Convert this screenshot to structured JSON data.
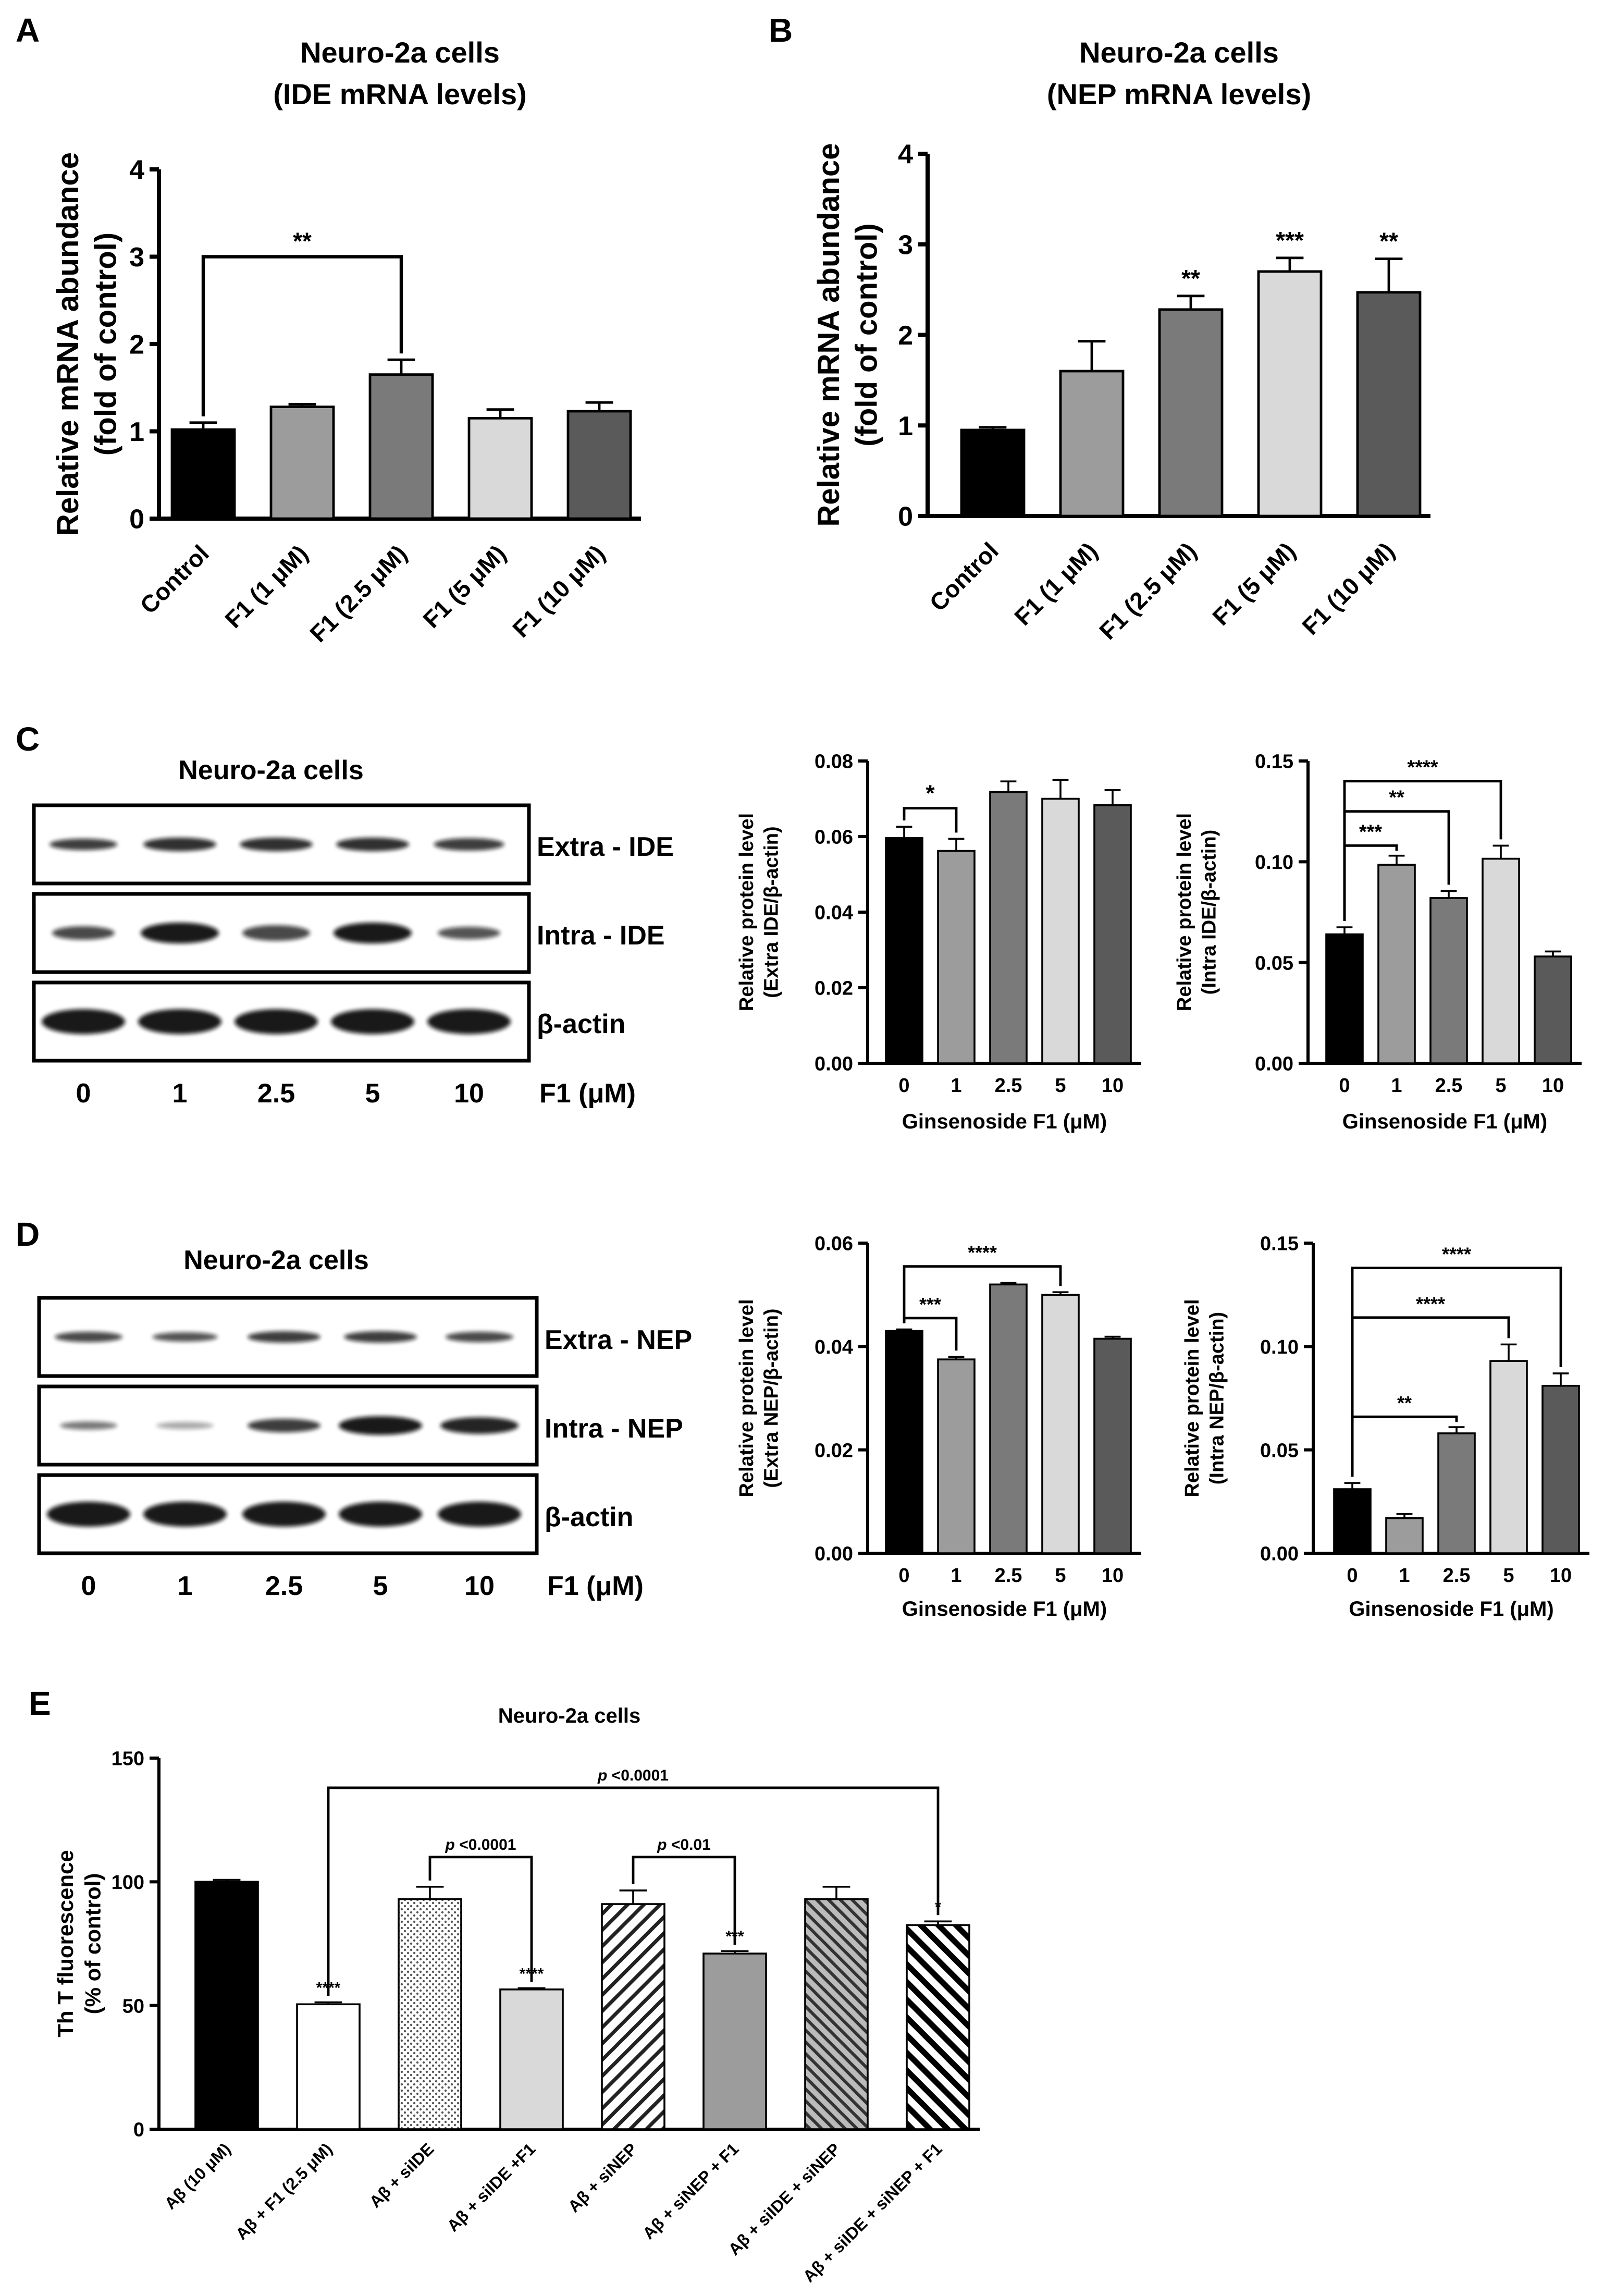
{
  "panels": {
    "A": {
      "letter": "A"
    },
    "B": {
      "letter": "B"
    },
    "C": {
      "letter": "C",
      "blot_title": "Neuro-2a cells",
      "lanes": [
        "0",
        "1",
        "2.5",
        "5",
        "10"
      ],
      "lane_unit": "F1 (μM)",
      "rows": [
        "Extra - IDE",
        "Intra - IDE",
        "β-actin"
      ]
    },
    "D": {
      "letter": "D",
      "blot_title": "Neuro-2a cells",
      "lanes": [
        "0",
        "1",
        "2.5",
        "5",
        "10"
      ],
      "lane_unit": "F1 (μM)",
      "rows": [
        "Extra - NEP",
        "Intra - NEP",
        "β-actin"
      ]
    },
    "E": {
      "letter": "E"
    }
  },
  "colors": {
    "black": "#000000",
    "mid_gray": "#9c9c9c",
    "dark_gray": "#7a7a7a",
    "light_gray": "#d9d9d9",
    "charcoal": "#5a5a5a",
    "white": "#ffffff"
  },
  "chart_data": [
    {
      "id": "A",
      "type": "bar",
      "title": [
        "Neuro-2a cells",
        "(IDE mRNA levels)"
      ],
      "ylabel": [
        "Relative mRNA abundance",
        "(fold of control)"
      ],
      "xlabel": "",
      "categories": [
        "Control",
        "F1 (1 μM)",
        "F1 (2.5 μM)",
        "F1 (5 μM)",
        "F1 (10 μM)"
      ],
      "values": [
        1.02,
        1.28,
        1.65,
        1.15,
        1.23
      ],
      "errors": [
        0.08,
        0.03,
        0.17,
        0.1,
        0.1
      ],
      "colors": [
        "#000000",
        "#9c9c9c",
        "#7a7a7a",
        "#d9d9d9",
        "#5a5a5a"
      ],
      "ylim": [
        0,
        4
      ],
      "yticks": [
        "0",
        "1",
        "2",
        "3",
        "4"
      ],
      "brackets": [
        {
          "from": 0,
          "to": 2,
          "level": 3.0,
          "label": "**"
        }
      ],
      "stars": []
    },
    {
      "id": "B",
      "type": "bar",
      "title": [
        "Neuro-2a cells",
        "(NEP mRNA levels)"
      ],
      "ylabel": [
        "Relative mRNA abundance",
        "(fold of control)"
      ],
      "xlabel": "",
      "categories": [
        "Control",
        "F1 (1 μM)",
        "F1 (2.5 μM)",
        "F1 (5 μM)",
        "F1 (10 μM)"
      ],
      "values": [
        0.95,
        1.6,
        2.28,
        2.7,
        2.47
      ],
      "errors": [
        0.03,
        0.33,
        0.15,
        0.15,
        0.37
      ],
      "colors": [
        "#000000",
        "#9c9c9c",
        "#7a7a7a",
        "#d9d9d9",
        "#5a5a5a"
      ],
      "ylim": [
        0,
        4
      ],
      "yticks": [
        "0",
        "1",
        "2",
        "3",
        "4"
      ],
      "brackets": [],
      "stars": [
        {
          "bar": 2,
          "label": "**"
        },
        {
          "bar": 3,
          "label": "***"
        },
        {
          "bar": 4,
          "label": "**"
        }
      ]
    },
    {
      "id": "C1",
      "type": "bar",
      "title": [],
      "ylabel": [
        "Relative protein level",
        "(Extra IDE/β-actin)"
      ],
      "xlabel": "Ginsenoside F1 (μM)",
      "categories": [
        "0",
        "1",
        "2.5",
        "5",
        "10"
      ],
      "values": [
        0.0596,
        0.0562,
        0.0718,
        0.07,
        0.0683
      ],
      "errors": [
        0.003,
        0.0032,
        0.0028,
        0.005,
        0.004
      ],
      "colors": [
        "#000000",
        "#9c9c9c",
        "#7a7a7a",
        "#d9d9d9",
        "#5a5a5a"
      ],
      "ylim": [
        0,
        0.08
      ],
      "yticks": [
        "0.00",
        "0.02",
        "0.04",
        "0.06",
        "0.08"
      ],
      "brackets": [
        {
          "from": 0,
          "to": 1,
          "level": 0.0675,
          "label": "*"
        }
      ],
      "stars": []
    },
    {
      "id": "C2",
      "type": "bar",
      "title": [],
      "ylabel": [
        "Relative protein level",
        "(Intra IDE/β-actin)"
      ],
      "xlabel": "Ginsenoside F1 (μM)",
      "categories": [
        "0",
        "1",
        "2.5",
        "5",
        "10"
      ],
      "values": [
        0.064,
        0.0985,
        0.082,
        0.1015,
        0.053
      ],
      "errors": [
        0.0035,
        0.0045,
        0.0035,
        0.0065,
        0.0025
      ],
      "colors": [
        "#000000",
        "#9c9c9c",
        "#7a7a7a",
        "#d9d9d9",
        "#5a5a5a"
      ],
      "ylim": [
        0,
        0.15
      ],
      "yticks": [
        "0.00",
        "0.05",
        "0.10",
        "0.15"
      ],
      "brackets": [
        {
          "from": 0,
          "to": 1,
          "level": 0.108,
          "label": "***"
        },
        {
          "from": 0,
          "to": 2,
          "level": 0.125,
          "label": "**"
        },
        {
          "from": 0,
          "to": 3,
          "level": 0.14,
          "label": "****"
        }
      ],
      "stars": []
    },
    {
      "id": "D1",
      "type": "bar",
      "title": [],
      "ylabel": [
        "Relative protein level",
        "(Extra NEP/β-actin)"
      ],
      "xlabel": "Ginsenoside F1 (μM)",
      "categories": [
        "0",
        "1",
        "2.5",
        "5",
        "10"
      ],
      "values": [
        0.043,
        0.0375,
        0.052,
        0.05,
        0.0415
      ],
      "errors": [
        0.0003,
        0.0005,
        0.0003,
        0.0005,
        0.0004
      ],
      "colors": [
        "#000000",
        "#9c9c9c",
        "#7a7a7a",
        "#d9d9d9",
        "#5a5a5a"
      ],
      "ylim": [
        0,
        0.06
      ],
      "yticks": [
        "0.00",
        "0.02",
        "0.04",
        "0.06"
      ],
      "brackets": [
        {
          "from": 0,
          "to": 1,
          "level": 0.0455,
          "label": "***"
        },
        {
          "from": 0,
          "to": 3,
          "level": 0.0555,
          "label": "****"
        }
      ],
      "stars": []
    },
    {
      "id": "D2",
      "type": "bar",
      "title": [],
      "ylabel": [
        "Relative protein level",
        "(Intra NEP/β-actin)"
      ],
      "xlabel": "Ginsenoside F1 (μM)",
      "categories": [
        "0",
        "1",
        "2.5",
        "5",
        "10"
      ],
      "values": [
        0.031,
        0.017,
        0.058,
        0.093,
        0.081
      ],
      "errors": [
        0.003,
        0.002,
        0.003,
        0.008,
        0.006
      ],
      "colors": [
        "#000000",
        "#9c9c9c",
        "#7a7a7a",
        "#d9d9d9",
        "#5a5a5a"
      ],
      "ylim": [
        0,
        0.15
      ],
      "yticks": [
        "0.00",
        "0.05",
        "0.10",
        "0.15"
      ],
      "brackets": [
        {
          "from": 0,
          "to": 2,
          "level": 0.066,
          "label": "**"
        },
        {
          "from": 0,
          "to": 3,
          "level": 0.114,
          "label": "****"
        },
        {
          "from": 0,
          "to": 4,
          "level": 0.138,
          "label": "****"
        }
      ],
      "stars": []
    },
    {
      "id": "E",
      "type": "bar",
      "title": [
        "Neuro-2a cells"
      ],
      "ylabel": [
        "Th T fluorescence",
        "(% of control)"
      ],
      "xlabel": "",
      "categories": [
        "Aβ (10 μM)",
        "Aβ + F1 (2.5 μM)",
        "Aβ + siIDE",
        "Aβ + siIDE +F1",
        "Aβ + siNEP",
        "Aβ + siNEP + F1",
        "Aβ + siIDE + siNEP",
        "Aβ + siIDE + siNEP + F1"
      ],
      "values": [
        100,
        50.5,
        93,
        56.5,
        91,
        71,
        93,
        82.5
      ],
      "errors": [
        0.8,
        0.8,
        5,
        0.5,
        5.5,
        1,
        5,
        1.5
      ],
      "colors": [
        "#000000",
        "#ffffff",
        "dots",
        "#d9d9d9",
        "hatch-light",
        "#9c9c9c",
        "hatch-dark",
        "hatch-bold"
      ],
      "ylim": [
        0,
        150
      ],
      "yticks": [
        "0",
        "50",
        "100",
        "150"
      ],
      "brackets": [
        {
          "from": 1,
          "to": 7,
          "level": 138,
          "label": "<0.0001",
          "p": "p"
        },
        {
          "from": 2,
          "to": 3,
          "level": 110,
          "label": "<0.0001",
          "p": "p"
        },
        {
          "from": 4,
          "to": 5,
          "level": 110,
          "label": "<0.01",
          "p": "p"
        }
      ],
      "stars": [
        {
          "bar": 1,
          "label": "****"
        },
        {
          "bar": 3,
          "label": "****"
        },
        {
          "bar": 5,
          "label": "***"
        },
        {
          "bar": 7,
          "label": "*"
        }
      ]
    }
  ]
}
